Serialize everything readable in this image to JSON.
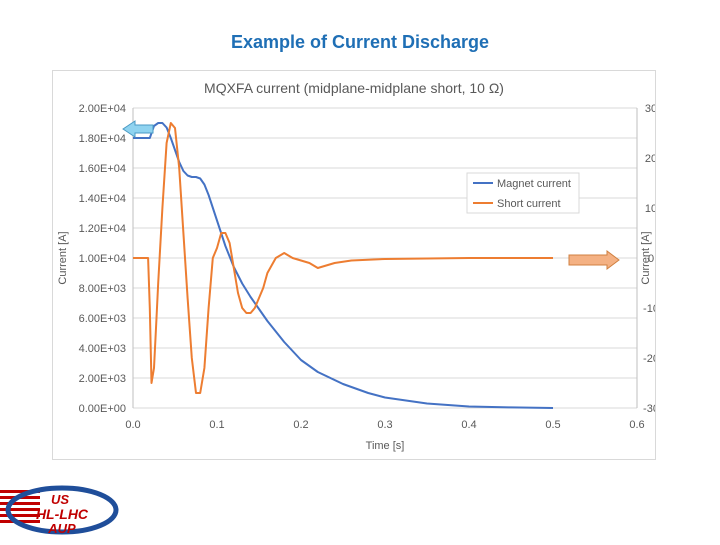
{
  "slide": {
    "title": "Example of Current Discharge"
  },
  "logo": {
    "line1": "US",
    "line2": "HL-LHC",
    "line3": "AUP"
  },
  "colors": {
    "title": "#1f6fb5",
    "magnet": "#4472c4",
    "short": "#ed7d31",
    "arrow_left": "#8fd3f0",
    "arrow_right": "#f4b183",
    "logo_red": "#c00000",
    "logo_blue": "#1f4e9a"
  },
  "chart_data": {
    "type": "line",
    "title": "MQXFA current (midplane-midplane short, 10 Ω)",
    "xlabel": "Time [s]",
    "ylabel_left": "Current [A]",
    "ylabel_right": "Current [A]",
    "xlim": [
      0.0,
      0.6
    ],
    "ylim_left": [
      0,
      20000
    ],
    "ylim_right": [
      -30,
      30
    ],
    "x_ticks": [
      "0.0",
      "0.1",
      "0.2",
      "0.3",
      "0.4",
      "0.5",
      "0.6"
    ],
    "y_ticks_left": [
      "0.00E+00",
      "2.00E+03",
      "4.00E+03",
      "6.00E+03",
      "8.00E+03",
      "1.00E+04",
      "1.20E+04",
      "1.40E+04",
      "1.60E+04",
      "1.80E+04",
      "2.00E+04"
    ],
    "y_ticks_right": [
      "-30",
      "-20",
      "-10",
      "0",
      "10",
      "20",
      "30"
    ],
    "grid": true,
    "legend_position": "center-right",
    "series": [
      {
        "name": "Magnet current",
        "axis": "left",
        "x": [
          0.0,
          0.01,
          0.02,
          0.025,
          0.03,
          0.035,
          0.04,
          0.045,
          0.05,
          0.055,
          0.06,
          0.065,
          0.07,
          0.075,
          0.08,
          0.085,
          0.09,
          0.1,
          0.11,
          0.12,
          0.13,
          0.14,
          0.15,
          0.16,
          0.18,
          0.2,
          0.22,
          0.25,
          0.28,
          0.3,
          0.35,
          0.4,
          0.45,
          0.5
        ],
        "values": [
          18000,
          18000,
          18000,
          18800,
          19000,
          19000,
          18700,
          18000,
          17200,
          16400,
          15800,
          15500,
          15400,
          15400,
          15300,
          14900,
          14200,
          12500,
          10800,
          9400,
          8300,
          7400,
          6600,
          5800,
          4400,
          3200,
          2400,
          1600,
          1000,
          700,
          300,
          100,
          40,
          0
        ]
      },
      {
        "name": "Short current",
        "axis": "right",
        "x": [
          0.0,
          0.018,
          0.02,
          0.022,
          0.025,
          0.028,
          0.03,
          0.035,
          0.04,
          0.045,
          0.05,
          0.055,
          0.06,
          0.065,
          0.07,
          0.075,
          0.08,
          0.085,
          0.09,
          0.095,
          0.1,
          0.105,
          0.11,
          0.115,
          0.12,
          0.125,
          0.13,
          0.135,
          0.14,
          0.145,
          0.15,
          0.155,
          0.16,
          0.17,
          0.18,
          0.19,
          0.2,
          0.21,
          0.22,
          0.24,
          0.26,
          0.3,
          0.4,
          0.5
        ],
        "values": [
          0,
          0,
          -10,
          -25,
          -22,
          -12,
          -5,
          10,
          23,
          27,
          26,
          18,
          5,
          -8,
          -20,
          -27,
          -27,
          -22,
          -10,
          0,
          2,
          5,
          5,
          3,
          -2,
          -7,
          -10,
          -11,
          -11,
          -10,
          -8,
          -6,
          -3,
          0,
          1,
          0,
          -0.5,
          -1,
          -2,
          -1,
          -0.5,
          -0.2,
          0,
          0
        ]
      }
    ]
  }
}
